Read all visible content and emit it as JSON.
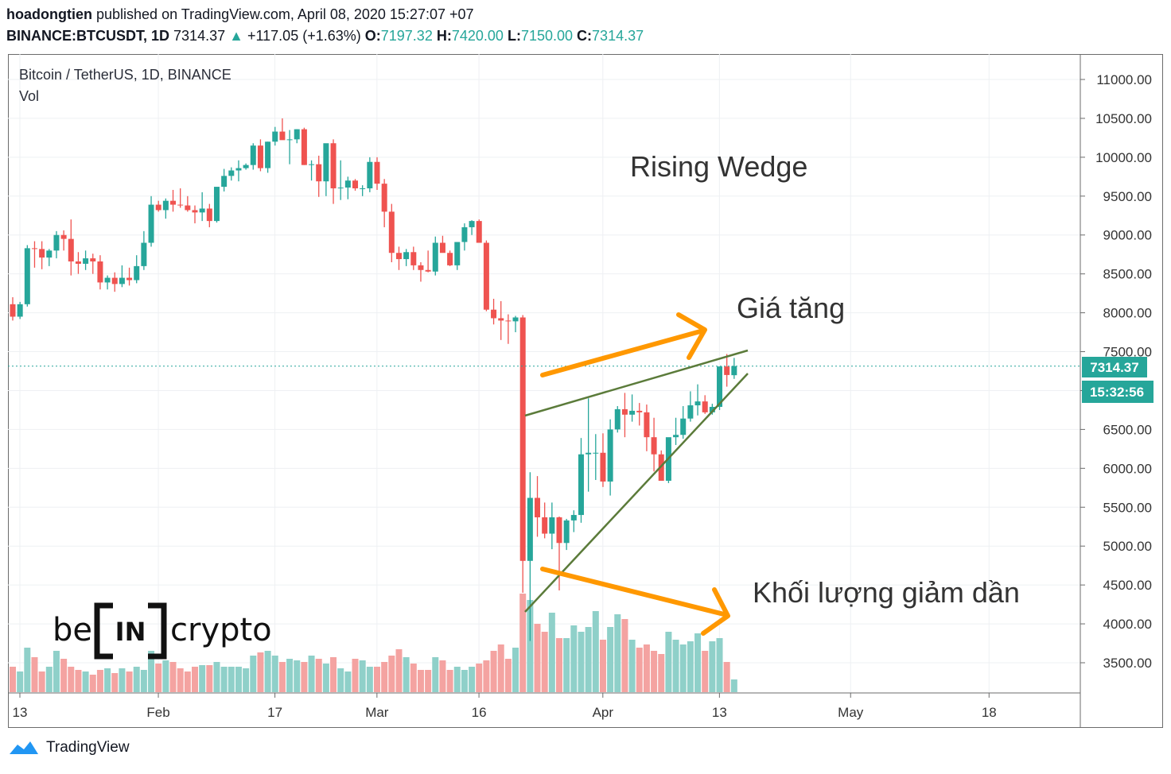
{
  "header": {
    "author": "hoadongtien",
    "published": "published on TradingView.com, April 08, 2020 15:27:07 +07",
    "symbol": "BINANCE:BTCUSDT, 1D",
    "last": "7314.37",
    "change": "+117.05 (+1.63%)",
    "o_label": "O:",
    "o_value": "7197.32",
    "h_label": "H:",
    "h_value": "7420.00",
    "l_label": "L:",
    "l_value": "7150.00",
    "c_label": "C:",
    "c_value": "7314.37"
  },
  "legend": {
    "title": "Bitcoin / TetherUS, 1D, BINANCE",
    "vol": "Vol"
  },
  "price_label": "7314.37",
  "time_label": "15:32:56",
  "annotations": {
    "wedge": "Rising Wedge",
    "price_up": "Giá tăng",
    "volume_down": "Khối lượng giảm dần"
  },
  "watermark": {
    "left": "be",
    "mid": "IN",
    "right": "crypto"
  },
  "footer": {
    "brand": "TradingView"
  },
  "colors": {
    "up": "#26a69a",
    "down": "#ef5350",
    "up_vol": "#8fd0c9",
    "down_vol": "#f4a3a1",
    "arrow": "#ff9800",
    "wedge": "#5b7b3a"
  },
  "chart_data": {
    "type": "candlestick",
    "symbol": "BTCUSDT",
    "interval": "1D",
    "y_ticks": [
      "11000.00",
      "10500.00",
      "10000.00",
      "9500.00",
      "9000.00",
      "8500.00",
      "8000.00",
      "7500.00",
      "7000.00",
      "6500.00",
      "6000.00",
      "5500.00",
      "5000.00",
      "4500.00",
      "4000.00",
      "3500.00"
    ],
    "x_ticks": [
      "13",
      "Feb",
      "17",
      "Mar",
      "16",
      "Apr",
      "13",
      "May",
      "18"
    ],
    "ylim": [
      3100,
      11300
    ],
    "grid": true,
    "last_price": 7314.37,
    "series": [
      {
        "name": "OHLC",
        "values": [
          [
            8110,
            8200,
            7900,
            7950
          ],
          [
            7950,
            8140,
            7920,
            8110
          ],
          [
            8110,
            8870,
            8080,
            8830
          ],
          [
            8830,
            8920,
            8580,
            8820
          ],
          [
            8820,
            8920,
            8560,
            8710
          ],
          [
            8710,
            8820,
            8600,
            8800
          ],
          [
            8800,
            9050,
            8700,
            9000
          ],
          [
            9000,
            9060,
            8800,
            8950
          ],
          [
            8950,
            9200,
            8480,
            8660
          ],
          [
            8660,
            8780,
            8500,
            8630
          ],
          [
            8630,
            8800,
            8550,
            8700
          ],
          [
            8700,
            8760,
            8500,
            8660
          ],
          [
            8660,
            8740,
            8300,
            8390
          ],
          [
            8390,
            8480,
            8300,
            8450
          ],
          [
            8450,
            8520,
            8270,
            8370
          ],
          [
            8370,
            8610,
            8330,
            8450
          ],
          [
            8450,
            8580,
            8350,
            8420
          ],
          [
            8420,
            8740,
            8380,
            8600
          ],
          [
            8600,
            9050,
            8550,
            8900
          ],
          [
            8900,
            9500,
            8850,
            9390
          ],
          [
            9390,
            9440,
            9300,
            9320
          ],
          [
            9320,
            9470,
            9210,
            9440
          ],
          [
            9440,
            9580,
            9300,
            9390
          ],
          [
            9390,
            9600,
            9350,
            9380
          ],
          [
            9380,
            9500,
            9300,
            9320
          ],
          [
            9320,
            9380,
            9150,
            9290
          ],
          [
            9290,
            9550,
            9180,
            9340
          ],
          [
            9340,
            9400,
            9100,
            9180
          ],
          [
            9180,
            9560,
            9160,
            9620
          ],
          [
            9620,
            9850,
            9560,
            9760
          ],
          [
            9760,
            9870,
            9700,
            9830
          ],
          [
            9830,
            9960,
            9690,
            9860
          ],
          [
            9860,
            9920,
            9840,
            9900
          ],
          [
            9900,
            10180,
            9840,
            10150
          ],
          [
            10150,
            10230,
            9820,
            9860
          ],
          [
            9860,
            10200,
            9800,
            10200
          ],
          [
            10200,
            10390,
            10150,
            10330
          ],
          [
            10330,
            10500,
            10250,
            10220
          ],
          [
            10220,
            10350,
            9910,
            10230
          ],
          [
            10230,
            10360,
            10180,
            10360
          ],
          [
            10360,
            10380,
            9900,
            9900
          ],
          [
            9900,
            9960,
            9700,
            9910
          ],
          [
            9910,
            10020,
            9490,
            9690
          ],
          [
            9690,
            10100,
            9500,
            10180
          ],
          [
            10180,
            10230,
            9400,
            9600
          ],
          [
            9600,
            9960,
            9450,
            9610
          ],
          [
            9610,
            9750,
            9460,
            9700
          ],
          [
            9700,
            9720,
            9570,
            9600
          ],
          [
            9600,
            9640,
            9500,
            9600
          ],
          [
            9600,
            10000,
            9550,
            9940
          ],
          [
            9940,
            10000,
            9580,
            9660
          ],
          [
            9660,
            9720,
            9100,
            9300
          ],
          [
            9300,
            9400,
            8650,
            8770
          ],
          [
            8770,
            8850,
            8550,
            8690
          ],
          [
            8690,
            8820,
            8600,
            8780
          ],
          [
            8780,
            8850,
            8550,
            8610
          ],
          [
            8610,
            8650,
            8400,
            8550
          ],
          [
            8550,
            8800,
            8520,
            8530
          ],
          [
            8530,
            8980,
            8480,
            8900
          ],
          [
            8900,
            8990,
            8850,
            8770
          ],
          [
            8770,
            8800,
            8600,
            8610
          ],
          [
            8610,
            8900,
            8550,
            8910
          ],
          [
            8910,
            9150,
            8800,
            9100
          ],
          [
            9100,
            9190,
            9000,
            9180
          ],
          [
            9180,
            9200,
            8920,
            8900
          ],
          [
            8900,
            8930,
            8020,
            8040
          ],
          [
            8040,
            8180,
            7850,
            7930
          ],
          [
            7930,
            8150,
            7650,
            7900
          ],
          [
            7900,
            7980,
            7600,
            7890
          ],
          [
            7890,
            7960,
            7750,
            7940
          ],
          [
            7940,
            7970,
            4400,
            4810
          ],
          [
            4810,
            5950,
            3780,
            5620
          ],
          [
            5620,
            5900,
            5120,
            5370
          ],
          [
            5370,
            5560,
            5100,
            5160
          ],
          [
            5160,
            5560,
            4960,
            5370
          ],
          [
            5370,
            5380,
            4430,
            5040
          ],
          [
            5040,
            5350,
            4950,
            5330
          ],
          [
            5330,
            5460,
            5180,
            5400
          ],
          [
            5400,
            6390,
            5300,
            6180
          ],
          [
            6180,
            6900,
            5700,
            6200
          ],
          [
            6200,
            6440,
            5850,
            6200
          ],
          [
            6200,
            6450,
            5760,
            5830
          ],
          [
            5830,
            6630,
            5650,
            6500
          ],
          [
            6500,
            6800,
            6460,
            6760
          ],
          [
            6760,
            6970,
            6400,
            6690
          ],
          [
            6690,
            6950,
            6600,
            6740
          ],
          [
            6740,
            6840,
            6550,
            6720
          ],
          [
            6720,
            6820,
            6220,
            6400
          ],
          [
            6400,
            6650,
            5960,
            6180
          ],
          [
            6180,
            6230,
            5870,
            5840
          ],
          [
            5840,
            6250,
            5810,
            6400
          ],
          [
            6400,
            6650,
            6300,
            6430
          ],
          [
            6430,
            6800,
            6380,
            6640
          ],
          [
            6640,
            6990,
            6600,
            6810
          ],
          [
            6810,
            7080,
            6680,
            6860
          ],
          [
            6860,
            6940,
            6700,
            6720
          ],
          [
            6720,
            6830,
            6690,
            6790
          ],
          [
            6790,
            7300,
            6750,
            7310
          ],
          [
            7310,
            7470,
            7050,
            7200
          ],
          [
            7197.32,
            7420,
            7150,
            7314.37
          ]
        ]
      },
      {
        "name": "Vol",
        "values": [
          1.6,
          1.3,
          2.8,
          2.2,
          1.3,
          1.6,
          2.6,
          2.1,
          1.6,
          1.4,
          1.3,
          1.1,
          1.4,
          1.5,
          1.2,
          1.5,
          1.3,
          1.6,
          1.4,
          2.6,
          1.8,
          2.0,
          1.9,
          1.5,
          1.3,
          1.6,
          1.7,
          1.7,
          1.9,
          1.6,
          1.6,
          1.6,
          1.5,
          2.3,
          2.5,
          2.6,
          2.3,
          1.9,
          2.1,
          2.0,
          1.9,
          2.3,
          2.1,
          1.8,
          2.2,
          1.5,
          1.3,
          2.1,
          2.0,
          1.6,
          1.6,
          1.9,
          2.3,
          2.7,
          2.2,
          1.8,
          1.4,
          1.4,
          2.2,
          2.0,
          1.4,
          1.6,
          1.4,
          1.6,
          1.8,
          2.0,
          2.6,
          3.0,
          2.1,
          2.8,
          6.2,
          5.8,
          4.3,
          3.8,
          5.0,
          3.4,
          3.4,
          4.2,
          3.8,
          4.1,
          5.1,
          3.3,
          4.1,
          4.9,
          4.6,
          3.3,
          2.8,
          3.0,
          2.6,
          2.4,
          3.8,
          3.3,
          3.0,
          3.2,
          3.7,
          2.6,
          3.2,
          3.4,
          1.9,
          0.8
        ]
      }
    ]
  }
}
